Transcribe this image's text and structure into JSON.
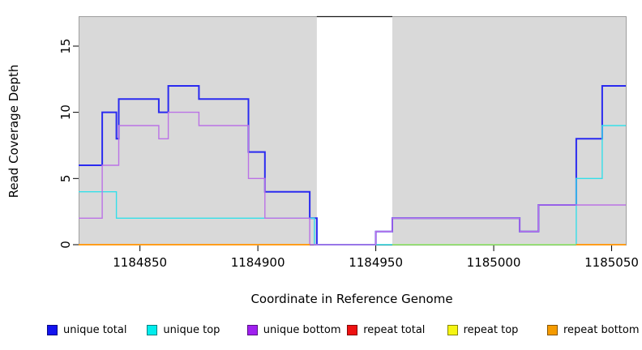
{
  "figure": {
    "background": "#ffffff"
  },
  "chart_data": {
    "type": "line",
    "step": true,
    "title": "",
    "xlabel": "Coordinate in Reference Genome",
    "ylabel": "Read Coverage Depth",
    "xlim": [
      1184824,
      1185056
    ],
    "ylim": [
      0,
      17.2
    ],
    "grid": "off",
    "x_ticks": {
      "values": [
        1184850,
        1184900,
        1184950,
        1185000,
        1185050
      ],
      "labels": [
        "1184850",
        "1184900",
        "1184950",
        "1185000",
        "1185050"
      ]
    },
    "y_ticks": {
      "values": [
        0,
        5,
        10,
        15
      ],
      "labels": [
        "0",
        "5",
        "10",
        "15"
      ]
    },
    "plot_background_bands": [
      {
        "x0": 1184824,
        "x1": 1184925,
        "color": "#d9d9d9"
      },
      {
        "x0": 1184957,
        "x1": 1185056,
        "color": "#d9d9d9"
      }
    ],
    "gap_region": {
      "x0": 1184925,
      "x1": 1184957,
      "color": "#ffffff"
    },
    "series": [
      {
        "name": "unique total",
        "color": "#1313ef",
        "line_color": "#2a2af0",
        "width": 2,
        "opacity": 1,
        "segments": [
          {
            "points": [
              [
                1184824,
                6
              ],
              [
                1184834,
                10
              ],
              [
                1184840,
                8
              ],
              [
                1184841,
                11
              ],
              [
                1184858,
                10
              ],
              [
                1184862,
                12
              ],
              [
                1184875,
                11
              ],
              [
                1184896,
                7
              ],
              [
                1184903,
                4
              ],
              [
                1184922,
                2
              ],
              [
                1184925,
                0
              ],
              [
                1184950,
                1
              ],
              [
                1184957,
                2
              ],
              [
                1185011,
                1
              ],
              [
                1185019,
                3
              ],
              [
                1185035,
                8
              ],
              [
                1185046,
                12
              ]
            ],
            "xend": 1185056
          }
        ]
      },
      {
        "name": "unique top",
        "color": "#00eded",
        "line_color": "#35dfe9",
        "width": 1.4,
        "opacity": 1,
        "segments": [
          {
            "points": [
              [
                1184824,
                4
              ],
              [
                1184840,
                2
              ],
              [
                1184924,
                0
              ],
              [
                1185035,
                5
              ],
              [
                1185046,
                9
              ]
            ],
            "xend": 1185056
          }
        ]
      },
      {
        "name": "unique bottom",
        "color": "#a020f0",
        "line_color": "#bb72e6",
        "width": 1.4,
        "opacity": 1,
        "segments": [
          {
            "points": [
              [
                1184824,
                2
              ],
              [
                1184834,
                6
              ],
              [
                1184841,
                9
              ],
              [
                1184858,
                8
              ],
              [
                1184862,
                10
              ],
              [
                1184875,
                9
              ],
              [
                1184896,
                5
              ],
              [
                1184903,
                2
              ],
              [
                1184922,
                0
              ],
              [
                1184950,
                1
              ],
              [
                1184957,
                2
              ],
              [
                1185011,
                1
              ],
              [
                1185019,
                3
              ]
            ],
            "xend": 1185056
          }
        ]
      },
      {
        "name": "repeat total",
        "color": "#ee1111",
        "line_color": "#dd2222",
        "width": 1.4,
        "opacity": 1,
        "segments": [
          {
            "points": [
              [
                1184824,
                0
              ]
            ],
            "xend": 1184922
          },
          {
            "points": [
              [
                1185035,
                0
              ]
            ],
            "xend": 1185056
          }
        ]
      },
      {
        "name": "repeat top",
        "color": "#f5f513",
        "line_color": "#ffff00",
        "width": 1.6,
        "opacity": 0.55,
        "segments": [
          {
            "points": [
              [
                1184824,
                0
              ]
            ],
            "xend": 1184922
          },
          {
            "points": [
              [
                1184957,
                0
              ]
            ],
            "xend": 1185035
          }
        ]
      },
      {
        "name": "repeat bottom",
        "color": "#f59b00",
        "line_color": "#ff9d1c",
        "width": 2,
        "opacity": 1,
        "segments": [
          {
            "points": [
              [
                1184824,
                0
              ]
            ],
            "xend": 1184922
          },
          {
            "points": [
              [
                1185035,
                0
              ]
            ],
            "xend": 1185056
          }
        ]
      }
    ],
    "legend": {
      "position": "bottom",
      "items": [
        {
          "label": "unique total",
          "color": "#1313ef"
        },
        {
          "label": "unique top",
          "color": "#00eded"
        },
        {
          "label": "unique bottom",
          "color": "#a020f0"
        },
        {
          "label": "repeat total",
          "color": "#ee1111"
        },
        {
          "label": "repeat top",
          "color": "#f5f513"
        },
        {
          "label": "repeat bottom",
          "color": "#f59b00"
        }
      ]
    }
  }
}
